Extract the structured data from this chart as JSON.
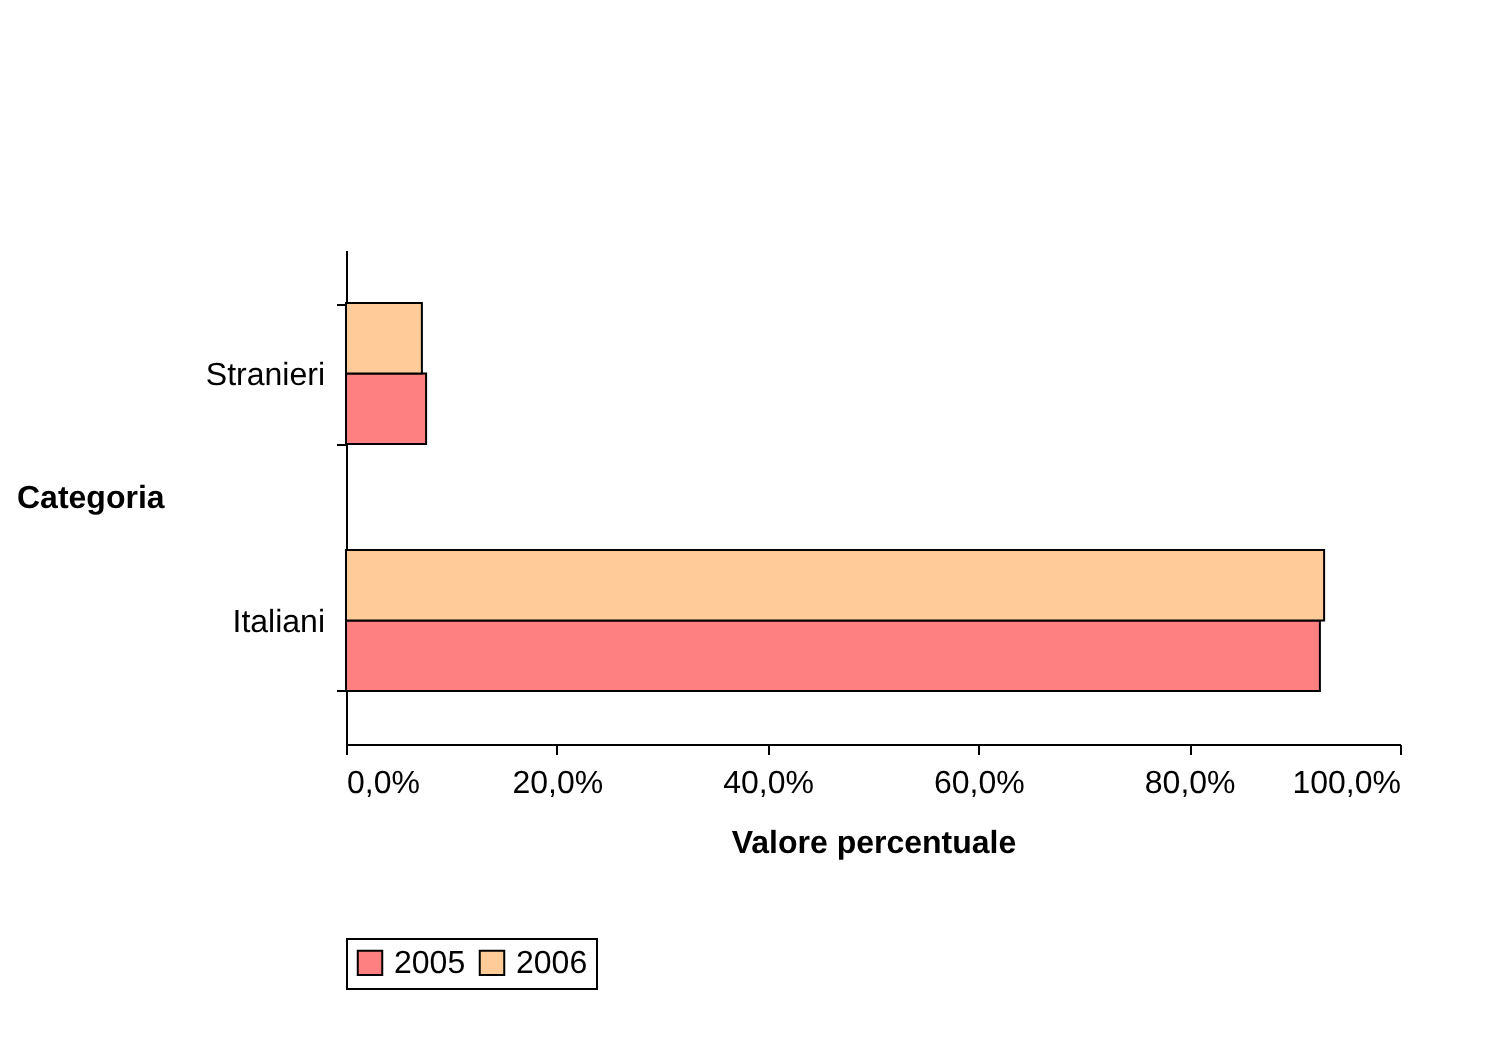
{
  "chart_data": {
    "type": "bar",
    "orientation": "horizontal",
    "xlabel": "Valore percentuale",
    "ylabel": "Categoria",
    "categories": [
      "Stranieri",
      "Italiani"
    ],
    "series": [
      {
        "name": "2005",
        "color": "#ff8080",
        "values": [
          7.6,
          92.4
        ]
      },
      {
        "name": "2006",
        "color": "#ffcc99",
        "values": [
          7.2,
          92.8
        ]
      }
    ],
    "xlim": [
      0,
      100
    ],
    "xticks": [
      {
        "value": 0,
        "label": "0,0%"
      },
      {
        "value": 20,
        "label": "20,0%"
      },
      {
        "value": 40,
        "label": "40,0%"
      },
      {
        "value": 60,
        "label": "60,0%"
      },
      {
        "value": 80,
        "label": "80,0%"
      },
      {
        "value": 100,
        "label": "100,0%"
      }
    ],
    "grid": false,
    "legend": "bottom"
  }
}
